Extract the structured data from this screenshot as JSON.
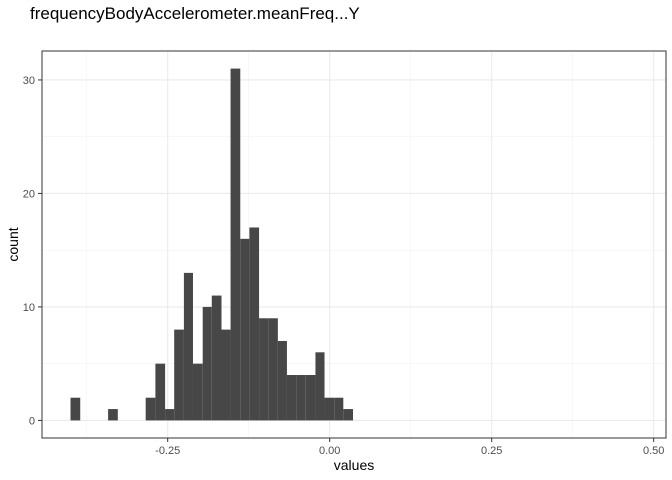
{
  "chart_data": {
    "type": "bar",
    "subtype": "histogram",
    "title": "frequencyBodyAccelerometer.meanFreq...Y",
    "xlabel": "values",
    "ylabel": "count",
    "xlim": [
      -0.444,
      0.519
    ],
    "ylim": [
      -1.55,
      32.55
    ],
    "x_ticks": [
      {
        "value": -0.25,
        "label": "-0.25"
      },
      {
        "value": 0.0,
        "label": "0.00"
      },
      {
        "value": 0.25,
        "label": "0.25"
      },
      {
        "value": 0.5,
        "label": "0.50"
      }
    ],
    "y_ticks": [
      {
        "value": 0,
        "label": "0"
      },
      {
        "value": 10,
        "label": "10"
      },
      {
        "value": 20,
        "label": "20"
      },
      {
        "value": 30,
        "label": "30"
      }
    ],
    "grid": true,
    "bar_color": "#474747",
    "bins": [
      {
        "x0": -0.4,
        "x1": -0.385,
        "count": 2
      },
      {
        "x0": -0.385,
        "x1": -0.371,
        "count": 0
      },
      {
        "x0": -0.371,
        "x1": -0.356,
        "count": 0
      },
      {
        "x0": -0.356,
        "x1": -0.342,
        "count": 0
      },
      {
        "x0": -0.342,
        "x1": -0.327,
        "count": 1
      },
      {
        "x0": -0.327,
        "x1": -0.313,
        "count": 0
      },
      {
        "x0": -0.313,
        "x1": -0.298,
        "count": 0
      },
      {
        "x0": -0.298,
        "x1": -0.284,
        "count": 0
      },
      {
        "x0": -0.284,
        "x1": -0.269,
        "count": 2
      },
      {
        "x0": -0.269,
        "x1": -0.254,
        "count": 5
      },
      {
        "x0": -0.254,
        "x1": -0.24,
        "count": 1
      },
      {
        "x0": -0.24,
        "x1": -0.225,
        "count": 8
      },
      {
        "x0": -0.225,
        "x1": -0.211,
        "count": 13
      },
      {
        "x0": -0.211,
        "x1": -0.196,
        "count": 5
      },
      {
        "x0": -0.196,
        "x1": -0.182,
        "count": 10
      },
      {
        "x0": -0.182,
        "x1": -0.167,
        "count": 11
      },
      {
        "x0": -0.167,
        "x1": -0.153,
        "count": 8
      },
      {
        "x0": -0.153,
        "x1": -0.138,
        "count": 31
      },
      {
        "x0": -0.138,
        "x1": -0.124,
        "count": 16
      },
      {
        "x0": -0.124,
        "x1": -0.109,
        "count": 17
      },
      {
        "x0": -0.109,
        "x1": -0.095,
        "count": 9
      },
      {
        "x0": -0.095,
        "x1": -0.08,
        "count": 9
      },
      {
        "x0": -0.08,
        "x1": -0.066,
        "count": 7
      },
      {
        "x0": -0.066,
        "x1": -0.051,
        "count": 4
      },
      {
        "x0": -0.051,
        "x1": -0.037,
        "count": 4
      },
      {
        "x0": -0.037,
        "x1": -0.022,
        "count": 4
      },
      {
        "x0": -0.022,
        "x1": -0.008,
        "count": 6
      },
      {
        "x0": -0.008,
        "x1": 0.007,
        "count": 2
      },
      {
        "x0": 0.007,
        "x1": 0.021,
        "count": 2
      },
      {
        "x0": 0.021,
        "x1": 0.036,
        "count": 1
      }
    ]
  }
}
